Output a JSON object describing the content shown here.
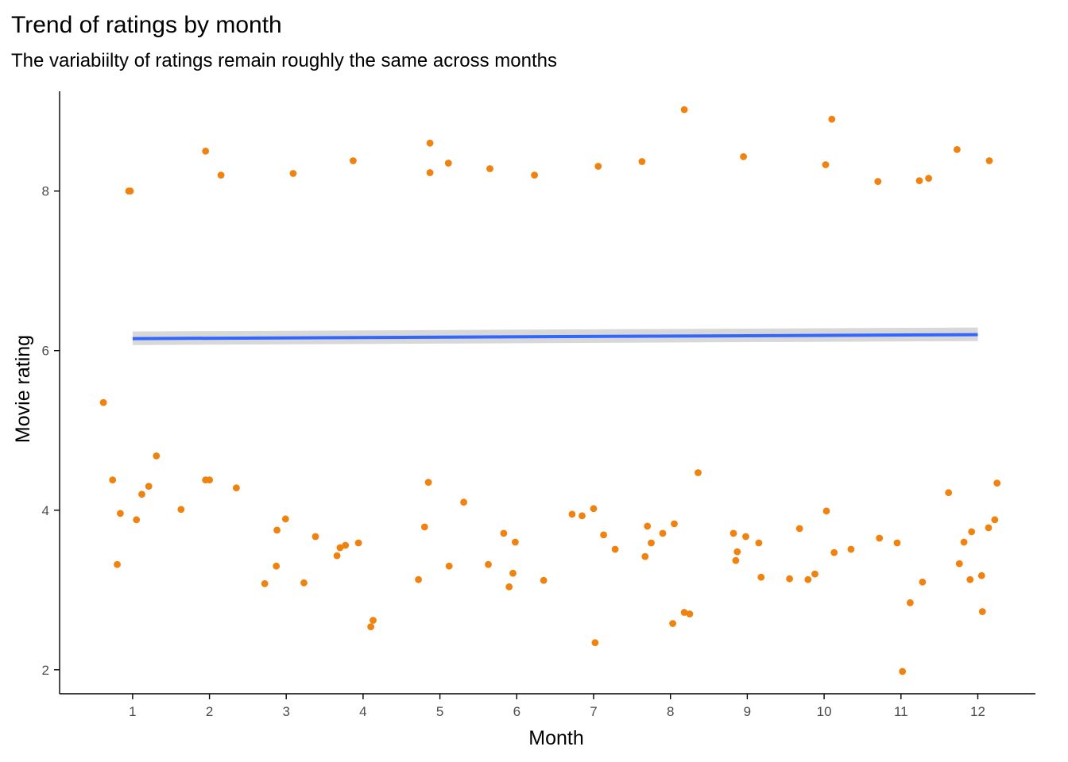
{
  "chart_data": {
    "type": "scatter",
    "title": "Trend of ratings by month",
    "subtitle": "The variabiilty of ratings remain roughly the same across months",
    "xlabel": "Month",
    "ylabel": "Movie rating",
    "x_ticks": [
      1,
      2,
      3,
      4,
      5,
      6,
      7,
      8,
      9,
      10,
      11,
      12
    ],
    "y_ticks": [
      2,
      4,
      6,
      8
    ],
    "xlim": [
      0.05,
      12.75
    ],
    "ylim": [
      1.7,
      9.25
    ],
    "grid": false,
    "point_color": "#f0820f",
    "trend_color": "#3366ff",
    "ribbon_color": "#d4d4d4",
    "trend": {
      "x": [
        1,
        12
      ],
      "y": [
        6.15,
        6.2
      ],
      "ribbon_low": [
        6.07,
        6.12
      ],
      "ribbon_high": [
        6.24,
        6.29
      ]
    },
    "points": [
      [
        0.62,
        5.35
      ],
      [
        0.74,
        4.38
      ],
      [
        0.8,
        3.32
      ],
      [
        0.84,
        3.96
      ],
      [
        0.95,
        8.0
      ],
      [
        1.05,
        3.88
      ],
      [
        1.12,
        4.2
      ],
      [
        1.21,
        4.3
      ],
      [
        1.31,
        4.68
      ],
      [
        1.63,
        4.01
      ],
      [
        1.95,
        4.38
      ],
      [
        2.0,
        4.38
      ],
      [
        2.35,
        4.28
      ],
      [
        2.72,
        3.08
      ],
      [
        2.87,
        3.3
      ],
      [
        2.88,
        3.75
      ],
      [
        2.99,
        3.89
      ],
      [
        3.23,
        3.09
      ],
      [
        3.38,
        3.67
      ],
      [
        3.66,
        3.43
      ],
      [
        3.7,
        3.53
      ],
      [
        3.77,
        3.56
      ],
      [
        3.94,
        3.59
      ],
      [
        4.1,
        2.54
      ],
      [
        4.13,
        2.62
      ],
      [
        4.72,
        3.13
      ],
      [
        4.8,
        3.79
      ],
      [
        4.85,
        4.35
      ],
      [
        5.12,
        3.3
      ],
      [
        5.31,
        4.1
      ],
      [
        5.63,
        3.32
      ],
      [
        5.83,
        3.71
      ],
      [
        5.9,
        3.04
      ],
      [
        5.95,
        3.21
      ],
      [
        5.98,
        3.6
      ],
      [
        6.35,
        3.12
      ],
      [
        6.72,
        3.95
      ],
      [
        6.85,
        3.93
      ],
      [
        7.0,
        4.02
      ],
      [
        7.02,
        2.34
      ],
      [
        7.13,
        3.69
      ],
      [
        7.28,
        3.51
      ],
      [
        7.67,
        3.42
      ],
      [
        7.7,
        3.8
      ],
      [
        7.75,
        3.59
      ],
      [
        7.9,
        3.71
      ],
      [
        8.03,
        2.58
      ],
      [
        8.05,
        3.83
      ],
      [
        8.18,
        2.72
      ],
      [
        8.25,
        2.7
      ],
      [
        8.36,
        4.47
      ],
      [
        8.82,
        3.71
      ],
      [
        8.85,
        3.37
      ],
      [
        8.87,
        3.48
      ],
      [
        8.98,
        3.67
      ],
      [
        9.15,
        3.59
      ],
      [
        9.18,
        3.16
      ],
      [
        9.55,
        3.14
      ],
      [
        9.68,
        3.77
      ],
      [
        9.79,
        3.13
      ],
      [
        9.88,
        3.2
      ],
      [
        10.03,
        3.99
      ],
      [
        10.13,
        3.47
      ],
      [
        10.35,
        3.51
      ],
      [
        10.72,
        3.65
      ],
      [
        10.95,
        3.59
      ],
      [
        11.12,
        2.84
      ],
      [
        11.28,
        3.1
      ],
      [
        11.02,
        1.98
      ],
      [
        11.62,
        4.22
      ],
      [
        11.76,
        3.33
      ],
      [
        11.82,
        3.6
      ],
      [
        11.9,
        3.13
      ],
      [
        11.92,
        3.73
      ],
      [
        12.05,
        3.18
      ],
      [
        12.06,
        2.73
      ],
      [
        12.14,
        3.78
      ],
      [
        12.22,
        3.88
      ],
      [
        12.25,
        4.34
      ],
      [
        8.18,
        9.02
      ],
      [
        10.1,
        8.9
      ],
      [
        4.87,
        8.6
      ],
      [
        1.95,
        8.5
      ],
      [
        11.73,
        8.52
      ],
      [
        4.87,
        8.23
      ],
      [
        3.87,
        8.38
      ],
      [
        8.95,
        8.43
      ],
      [
        12.15,
        8.38
      ],
      [
        7.63,
        8.37
      ],
      [
        10.02,
        8.33
      ],
      [
        5.65,
        8.28
      ],
      [
        5.11,
        8.35
      ],
      [
        7.06,
        8.31
      ],
      [
        0.97,
        8.0
      ],
      [
        3.09,
        8.22
      ],
      [
        2.15,
        8.2
      ],
      [
        6.23,
        8.2
      ],
      [
        10.7,
        8.12
      ],
      [
        11.24,
        8.13
      ],
      [
        11.36,
        8.16
      ]
    ]
  }
}
